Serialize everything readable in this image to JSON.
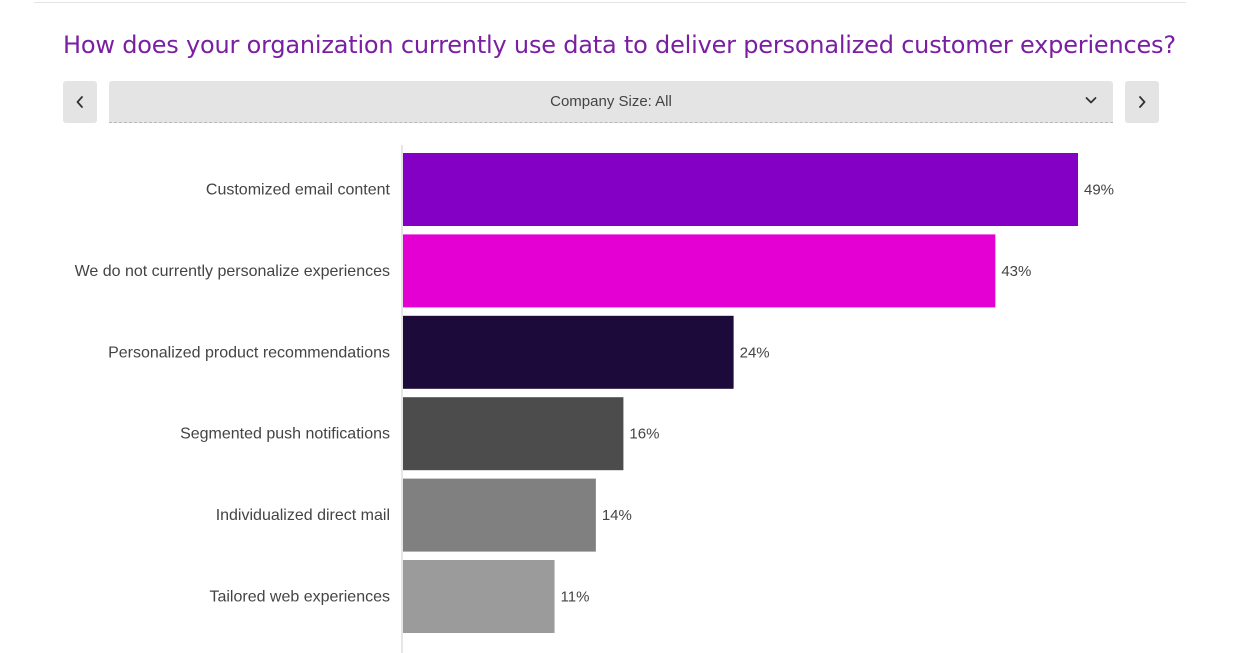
{
  "header": {
    "title": "How does your organization currently use data to deliver personalized customer experiences?"
  },
  "filter": {
    "selected": "Company Size: All",
    "prev_icon": "chevron-left-icon",
    "next_icon": "chevron-right-icon",
    "dropdown_icon": "chevron-down-icon"
  },
  "colors": {
    "title": "#7a1fa2",
    "label_text": "#444444",
    "axis": "#cccccc"
  },
  "chart_data": {
    "type": "bar",
    "orientation": "horizontal",
    "title": "How does your organization currently use data to deliver personalized customer experiences?",
    "xlabel": "",
    "ylabel": "",
    "xlim": [
      0,
      49
    ],
    "grid": false,
    "categories": [
      "Customized email content",
      "We do not currently personalize experiences",
      "Personalized product recommendations",
      "Segmented push notifications",
      "Individualized direct mail",
      "Tailored web experiences"
    ],
    "values": [
      49,
      43,
      24,
      16,
      14,
      11
    ],
    "value_labels": [
      "49%",
      "43%",
      "24%",
      "16%",
      "14%",
      "11%"
    ],
    "bar_colors": [
      "#8300c4",
      "#e400d2",
      "#1b0a3a",
      "#4c4c4c",
      "#808080",
      "#9b9b9b"
    ]
  }
}
